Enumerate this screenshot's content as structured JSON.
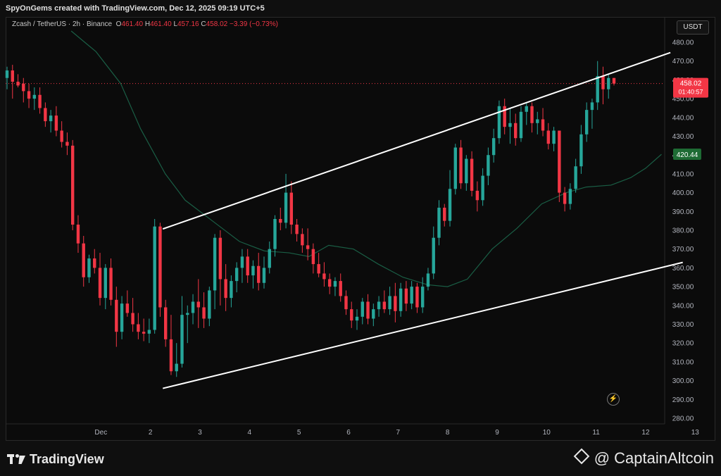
{
  "header": {
    "attribution": "SpyOnGems created with TradingView.com, Dec 12, 2025 09:19 UTC+5"
  },
  "legend": {
    "symbol": "Zcash / TetherUS · 2h · Binance",
    "o_label": "O",
    "o": "461.40",
    "h_label": "H",
    "h": "461.40",
    "l_label": "L",
    "l": "457.16",
    "c_label": "C",
    "c": "458.02",
    "change": "−3.39 (−0.73%)"
  },
  "currency_button": "USDT",
  "price_tag": {
    "price": "458.02",
    "countdown": "01:40:57",
    "color": "#f23645"
  },
  "ma_tag": {
    "price": "420.44",
    "color": "#1e6b34"
  },
  "colors": {
    "up": "#26a69a",
    "down": "#f23645",
    "ma": "#1a5e45",
    "channel": "#ffffff"
  },
  "icons": {
    "flash": "lightning-icon"
  },
  "footer": {
    "logo": "TradingView",
    "credit": "@ CaptainAltcoin"
  },
  "chart_data": {
    "type": "candlestick",
    "title": "",
    "xlabel": "",
    "ylabel": "",
    "ylim": [
      278,
      488
    ],
    "grid": false,
    "x_ticks": [
      "Dec",
      "2",
      "3",
      "4",
      "5",
      "6",
      "7",
      "8",
      "9",
      "10",
      "11",
      "12",
      "13"
    ],
    "y_ticks": [
      280,
      290,
      300,
      310,
      320,
      330,
      340,
      350,
      360,
      370,
      380,
      390,
      400,
      410,
      420,
      430,
      440,
      450,
      460,
      470,
      480
    ],
    "current_price": 458.02,
    "channel_upper": {
      "from": [
        2.25,
        380.7
      ],
      "to": [
        12.5,
        474.5
      ]
    },
    "channel_lower": {
      "from": [
        2.25,
        295.9
      ],
      "to": [
        12.75,
        362.9
      ]
    },
    "moving_average": [
      [
        0.4,
        486
      ],
      [
        0.9,
        475
      ],
      [
        1.4,
        458
      ],
      [
        1.8,
        434
      ],
      [
        2.3,
        410
      ],
      [
        2.7,
        396
      ],
      [
        3.3,
        384
      ],
      [
        3.8,
        374
      ],
      [
        4.3,
        369
      ],
      [
        4.8,
        368
      ],
      [
        5.2,
        366
      ],
      [
        5.6,
        372
      ],
      [
        6.1,
        370
      ],
      [
        6.6,
        362
      ],
      [
        7.1,
        355
      ],
      [
        7.6,
        351
      ],
      [
        8.0,
        350
      ],
      [
        8.4,
        354
      ],
      [
        8.9,
        370
      ],
      [
        9.4,
        381
      ],
      [
        9.9,
        394
      ],
      [
        10.4,
        400
      ],
      [
        10.8,
        403
      ],
      [
        11.3,
        404
      ],
      [
        11.7,
        408
      ],
      [
        12.0,
        413
      ],
      [
        12.32,
        420.4
      ]
    ],
    "candles": [
      [
        461,
        467,
        455,
        465
      ],
      [
        465,
        468,
        450,
        459
      ],
      [
        459,
        463,
        456,
        457
      ],
      [
        458,
        461,
        448,
        454
      ],
      [
        454,
        458,
        445,
        450
      ],
      [
        450,
        456,
        444,
        452
      ],
      [
        452,
        456,
        442,
        445
      ],
      [
        445,
        448,
        435,
        438
      ],
      [
        438,
        444,
        432,
        441
      ],
      [
        441,
        446,
        430,
        433
      ],
      [
        433,
        438,
        424,
        427
      ],
      [
        427,
        432,
        420,
        425
      ],
      [
        425,
        428,
        380,
        383
      ],
      [
        383,
        388,
        368,
        373
      ],
      [
        373,
        377,
        350,
        355
      ],
      [
        355,
        367,
        352,
        365
      ],
      [
        365,
        370,
        357,
        360
      ],
      [
        360,
        368,
        340,
        344
      ],
      [
        344,
        362,
        338,
        360
      ],
      [
        360,
        365,
        340,
        343
      ],
      [
        343,
        350,
        318,
        326
      ],
      [
        326,
        345,
        322,
        341
      ],
      [
        341,
        348,
        334,
        336
      ],
      [
        336,
        344,
        326,
        330
      ],
      [
        330,
        336,
        322,
        326
      ],
      [
        326,
        333,
        321,
        325
      ],
      [
        325,
        333,
        320,
        327
      ],
      [
        327,
        386,
        325,
        382
      ],
      [
        382,
        384,
        334,
        339
      ],
      [
        339,
        343,
        318,
        322
      ],
      [
        322,
        335,
        303,
        305
      ],
      [
        305,
        320,
        302,
        309
      ],
      [
        309,
        345,
        307,
        335
      ],
      [
        335,
        340,
        320,
        336
      ],
      [
        336,
        346,
        330,
        342
      ],
      [
        342,
        354,
        328,
        339
      ],
      [
        339,
        347,
        328,
        333
      ],
      [
        333,
        350,
        329,
        348
      ],
      [
        348,
        378,
        338,
        376
      ],
      [
        376,
        380,
        340,
        354
      ],
      [
        354,
        362,
        337,
        344
      ],
      [
        344,
        356,
        339,
        353
      ],
      [
        353,
        363,
        347,
        360
      ],
      [
        360,
        370,
        352,
        366
      ],
      [
        366,
        370,
        352,
        356
      ],
      [
        356,
        364,
        349,
        361
      ],
      [
        361,
        368,
        348,
        352
      ],
      [
        352,
        366,
        349,
        360
      ],
      [
        360,
        374,
        357,
        370
      ],
      [
        370,
        388,
        366,
        386
      ],
      [
        386,
        392,
        380,
        384
      ],
      [
        384,
        410,
        381,
        400
      ],
      [
        400,
        406,
        378,
        383
      ],
      [
        383,
        386,
        374,
        378
      ],
      [
        378,
        381,
        368,
        372
      ],
      [
        372,
        381,
        364,
        370
      ],
      [
        370,
        373,
        357,
        362
      ],
      [
        362,
        368,
        355,
        357
      ],
      [
        357,
        363,
        350,
        354
      ],
      [
        354,
        357,
        346,
        350
      ],
      [
        350,
        355,
        345,
        353
      ],
      [
        353,
        357,
        342,
        345
      ],
      [
        345,
        348,
        335,
        338
      ],
      [
        338,
        342,
        328,
        332
      ],
      [
        332,
        338,
        327,
        334
      ],
      [
        334,
        344,
        330,
        342
      ],
      [
        342,
        346,
        330,
        333
      ],
      [
        333,
        341,
        329,
        338
      ],
      [
        338,
        345,
        334,
        342
      ],
      [
        342,
        348,
        336,
        338
      ],
      [
        338,
        350,
        335,
        345
      ],
      [
        345,
        352,
        331,
        337
      ],
      [
        337,
        352,
        334,
        349
      ],
      [
        349,
        353,
        337,
        341
      ],
      [
        341,
        353,
        338,
        350
      ],
      [
        350,
        352,
        336,
        339
      ],
      [
        339,
        355,
        336,
        350
      ],
      [
        350,
        360,
        348,
        357
      ],
      [
        357,
        382,
        354,
        376
      ],
      [
        376,
        396,
        372,
        392
      ],
      [
        392,
        394,
        382,
        385
      ],
      [
        385,
        412,
        382,
        402
      ],
      [
        402,
        426,
        399,
        424
      ],
      [
        424,
        428,
        402,
        405
      ],
      [
        405,
        420,
        401,
        418
      ],
      [
        418,
        422,
        398,
        401
      ],
      [
        401,
        406,
        390,
        396
      ],
      [
        396,
        413,
        393,
        409
      ],
      [
        409,
        424,
        404,
        420
      ],
      [
        420,
        434,
        416,
        429
      ],
      [
        429,
        449,
        426,
        446
      ],
      [
        446,
        450,
        431,
        435
      ],
      [
        435,
        445,
        426,
        437
      ],
      [
        437,
        442,
        425,
        429
      ],
      [
        429,
        446,
        427,
        443
      ],
      [
        443,
        448,
        436,
        446
      ],
      [
        446,
        448,
        432,
        437
      ],
      [
        437,
        443,
        431,
        439
      ],
      [
        439,
        445,
        430,
        433
      ],
      [
        433,
        437,
        423,
        426
      ],
      [
        426,
        435,
        422,
        433
      ],
      [
        433,
        433,
        395,
        400
      ],
      [
        400,
        403,
        390,
        394
      ],
      [
        394,
        405,
        391,
        402
      ],
      [
        402,
        418,
        400,
        414
      ],
      [
        414,
        436,
        410,
        431
      ],
      [
        431,
        448,
        427,
        444
      ],
      [
        444,
        450,
        434,
        448
      ],
      [
        448,
        470,
        444,
        462
      ],
      [
        462,
        467,
        447,
        455
      ],
      [
        455,
        463,
        450,
        461
      ],
      [
        461,
        461,
        457,
        458
      ]
    ]
  }
}
